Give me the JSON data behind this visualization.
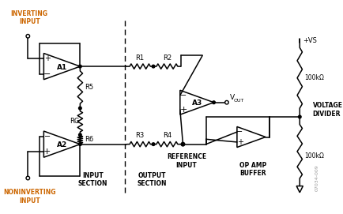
{
  "bg_color": "#ffffff",
  "line_color": "#000000",
  "orange_color": "#cc6600",
  "fig_width": 4.35,
  "fig_height": 2.71,
  "dpi": 100,
  "inv_input_text": "INVERTING\nINPUT",
  "noninv_text": "NONINVERTING\nINPUT",
  "input_section_text": "INPUT\nSECTION",
  "output_section_text": "OUTPUT\nSECTION",
  "ref_input_text": "REFERENCE\nINPUT",
  "op_amp_buffer_text": "OP AMP\nBUFFER",
  "voltage_divider_text": "VOLTAGE\nDIVIDER",
  "vs_text": "+VS",
  "r1_text": "R1",
  "r2_text": "R2",
  "r3_text": "R3",
  "r4_text": "R4",
  "r5_text": "R5",
  "r6_text": "R6",
  "rg_text": "RG",
  "r100k_top": "100kΩ",
  "r100k_bot": "100kΩ",
  "a1_text": "A1",
  "a2_text": "A2",
  "a3_text": "A3",
  "watermark": "07034-009"
}
